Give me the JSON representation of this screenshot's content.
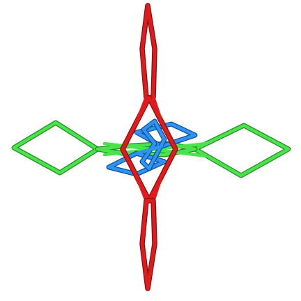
{
  "figure": {
    "components": [
      {
        "id": "green-net",
        "color": "#4be34b",
        "shape": "rhombus-chain",
        "orientation": "horizontal"
      },
      {
        "id": "red-net",
        "color": "#e01b1b",
        "shape": "rhombus-chain",
        "orientation": "vertical"
      },
      {
        "id": "blue-net",
        "color": "#2f93f2",
        "shape": "interlocked-rhombi",
        "orientation": "central"
      }
    ]
  }
}
